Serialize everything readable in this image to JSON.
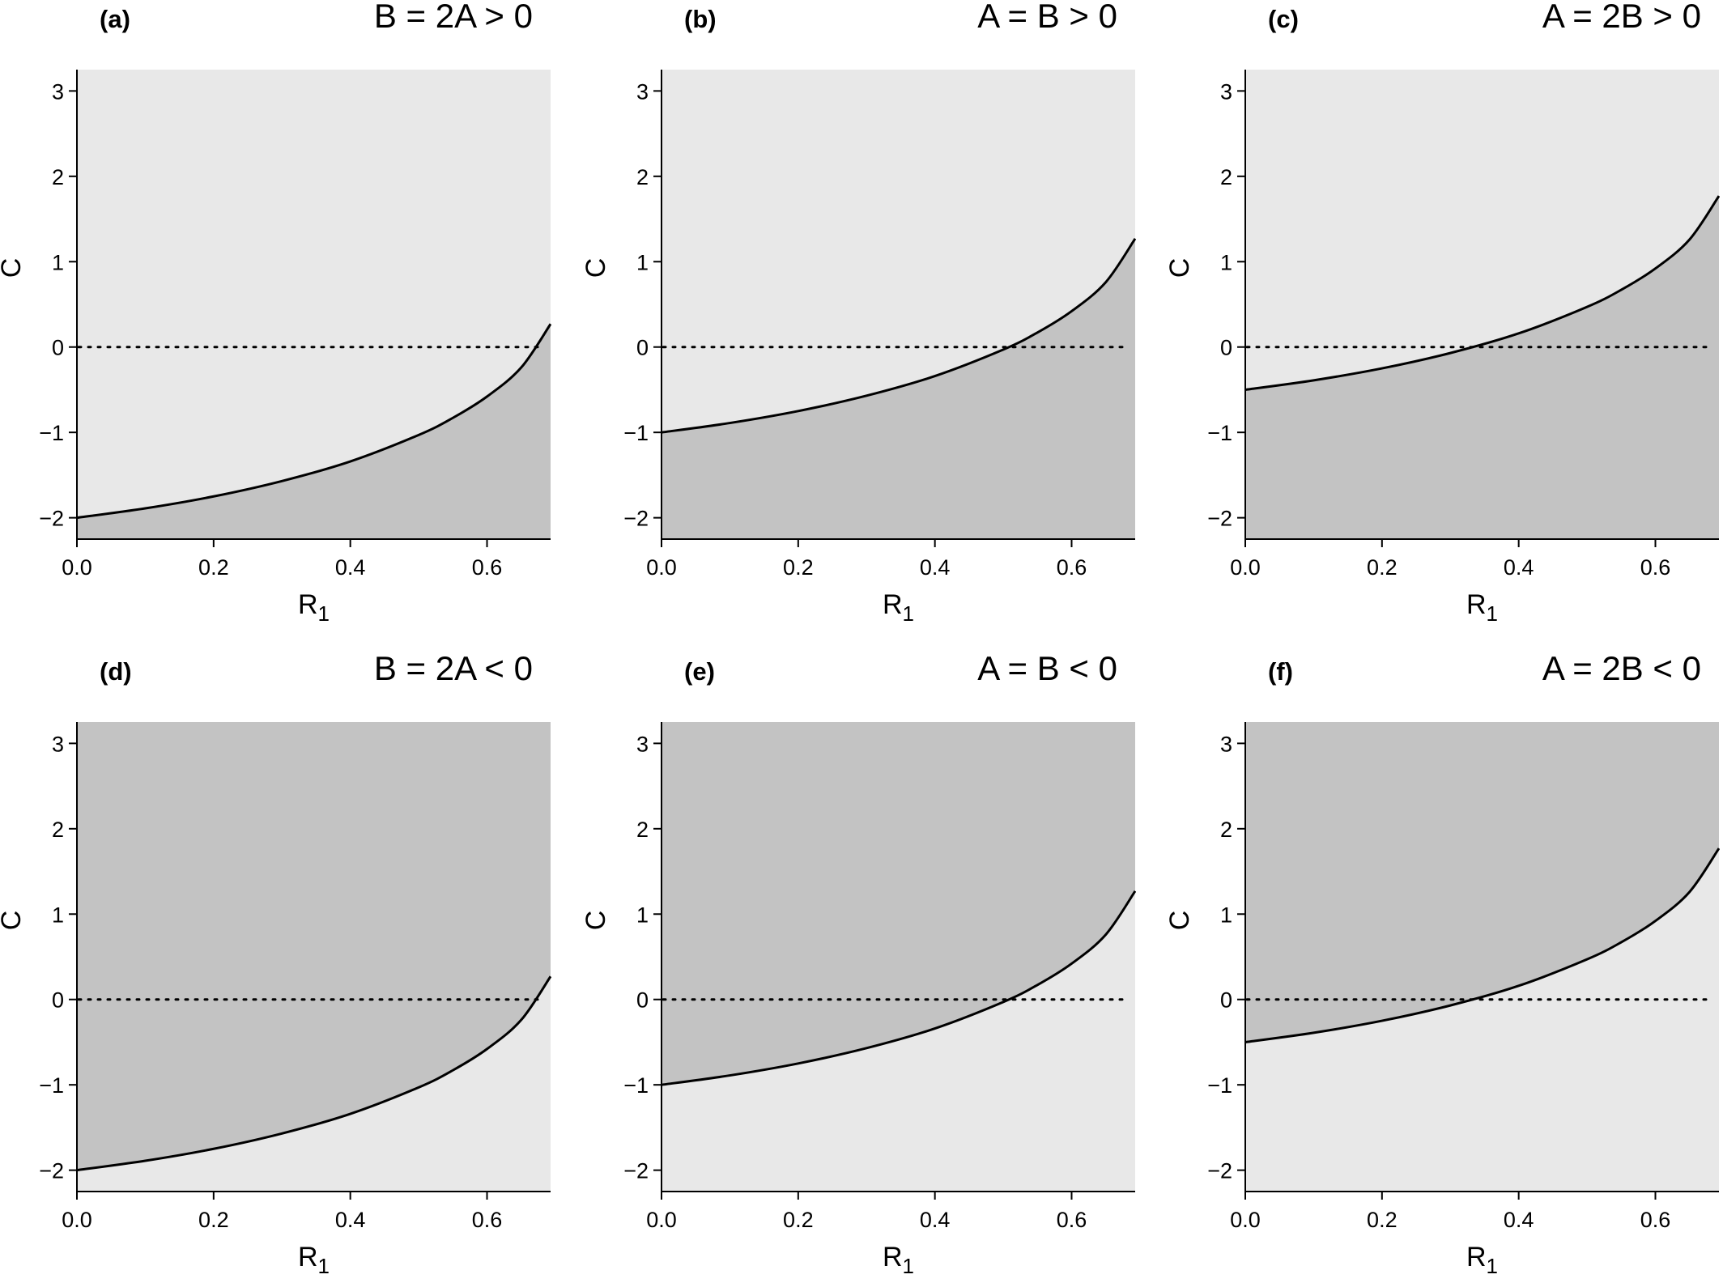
{
  "chart_data": [
    {
      "type": "area",
      "panel_label": "(a)",
      "title": "B = 2A > 0",
      "xlabel": "R",
      "xlabel_subscript": "1",
      "ylabel": "C",
      "xlim": [
        0.0,
        0.693
      ],
      "ylim": [
        -2.25,
        3.25
      ],
      "xticks": [
        0.0,
        0.2,
        0.4,
        0.6
      ],
      "xtick_labels": [
        "0.0",
        "0.2",
        "0.4",
        "0.6"
      ],
      "yticks": [
        -2,
        -1,
        0,
        1,
        2,
        3
      ],
      "ytick_labels": [
        "−2",
        "−1",
        "0",
        "1",
        "2",
        "3"
      ],
      "curve": {
        "x": [
          0.0,
          0.1,
          0.2,
          0.3,
          0.4,
          0.5,
          0.55,
          0.6,
          0.65,
          0.693
        ],
        "y": [
          -2.0,
          -1.89,
          -1.75,
          -1.57,
          -1.34,
          -1.03,
          -0.83,
          -0.58,
          -0.24,
          0.27
        ]
      },
      "fill_above": "#e8e8e8",
      "fill_below": "#c3c3c3",
      "reference_line_y": 0
    },
    {
      "type": "area",
      "panel_label": "(b)",
      "title": "A = B > 0",
      "xlabel": "R",
      "xlabel_subscript": "1",
      "ylabel": "C",
      "xlim": [
        0.0,
        0.693
      ],
      "ylim": [
        -2.25,
        3.25
      ],
      "xticks": [
        0.0,
        0.2,
        0.4,
        0.6
      ],
      "xtick_labels": [
        "0.0",
        "0.2",
        "0.4",
        "0.6"
      ],
      "yticks": [
        -2,
        -1,
        0,
        1,
        2,
        3
      ],
      "ytick_labels": [
        "−2",
        "−1",
        "0",
        "1",
        "2",
        "3"
      ],
      "curve": {
        "x": [
          0.0,
          0.1,
          0.2,
          0.3,
          0.4,
          0.5,
          0.55,
          0.6,
          0.65,
          0.693
        ],
        "y": [
          -1.0,
          -0.89,
          -0.75,
          -0.57,
          -0.34,
          -0.03,
          0.17,
          0.42,
          0.76,
          1.27
        ]
      },
      "fill_above": "#e8e8e8",
      "fill_below": "#c3c3c3",
      "reference_line_y": 0
    },
    {
      "type": "area",
      "panel_label": "(c)",
      "title": "A = 2B > 0",
      "xlabel": "R",
      "xlabel_subscript": "1",
      "ylabel": "C",
      "xlim": [
        0.0,
        0.693
      ],
      "ylim": [
        -2.25,
        3.25
      ],
      "xticks": [
        0.0,
        0.2,
        0.4,
        0.6
      ],
      "xtick_labels": [
        "0.0",
        "0.2",
        "0.4",
        "0.6"
      ],
      "yticks": [
        -2,
        -1,
        0,
        1,
        2,
        3
      ],
      "ytick_labels": [
        "−2",
        "−1",
        "0",
        "1",
        "2",
        "3"
      ],
      "curve": {
        "x": [
          0.0,
          0.1,
          0.2,
          0.3,
          0.4,
          0.5,
          0.55,
          0.6,
          0.65,
          0.693
        ],
        "y": [
          -0.5,
          -0.39,
          -0.25,
          -0.07,
          0.16,
          0.47,
          0.67,
          0.92,
          1.26,
          1.77
        ]
      },
      "fill_above": "#e8e8e8",
      "fill_below": "#c3c3c3",
      "reference_line_y": 0
    },
    {
      "type": "area",
      "panel_label": "(d)",
      "title": "B = 2A < 0",
      "xlabel": "R",
      "xlabel_subscript": "1",
      "ylabel": "C",
      "xlim": [
        0.0,
        0.693
      ],
      "ylim": [
        -2.25,
        3.25
      ],
      "xticks": [
        0.0,
        0.2,
        0.4,
        0.6
      ],
      "xtick_labels": [
        "0.0",
        "0.2",
        "0.4",
        "0.6"
      ],
      "yticks": [
        -2,
        -1,
        0,
        1,
        2,
        3
      ],
      "ytick_labels": [
        "−2",
        "−1",
        "0",
        "1",
        "2",
        "3"
      ],
      "curve": {
        "x": [
          0.0,
          0.1,
          0.2,
          0.3,
          0.4,
          0.5,
          0.55,
          0.6,
          0.65,
          0.693
        ],
        "y": [
          -2.0,
          -1.89,
          -1.75,
          -1.57,
          -1.34,
          -1.03,
          -0.83,
          -0.58,
          -0.24,
          0.27
        ]
      },
      "fill_above": "#c3c3c3",
      "fill_below": "#e8e8e8",
      "reference_line_y": 0
    },
    {
      "type": "area",
      "panel_label": "(e)",
      "title": "A = B < 0",
      "xlabel": "R",
      "xlabel_subscript": "1",
      "ylabel": "C",
      "xlim": [
        0.0,
        0.693
      ],
      "ylim": [
        -2.25,
        3.25
      ],
      "xticks": [
        0.0,
        0.2,
        0.4,
        0.6
      ],
      "xtick_labels": [
        "0.0",
        "0.2",
        "0.4",
        "0.6"
      ],
      "yticks": [
        -2,
        -1,
        0,
        1,
        2,
        3
      ],
      "ytick_labels": [
        "−2",
        "−1",
        "0",
        "1",
        "2",
        "3"
      ],
      "curve": {
        "x": [
          0.0,
          0.1,
          0.2,
          0.3,
          0.4,
          0.5,
          0.55,
          0.6,
          0.65,
          0.693
        ],
        "y": [
          -1.0,
          -0.89,
          -0.75,
          -0.57,
          -0.34,
          -0.03,
          0.17,
          0.42,
          0.76,
          1.27
        ]
      },
      "fill_above": "#c3c3c3",
      "fill_below": "#e8e8e8",
      "reference_line_y": 0
    },
    {
      "type": "area",
      "panel_label": "(f)",
      "title": "A = 2B < 0",
      "xlabel": "R",
      "xlabel_subscript": "1",
      "ylabel": "C",
      "xlim": [
        0.0,
        0.693
      ],
      "ylim": [
        -2.25,
        3.25
      ],
      "xticks": [
        0.0,
        0.2,
        0.4,
        0.6
      ],
      "xtick_labels": [
        "0.0",
        "0.2",
        "0.4",
        "0.6"
      ],
      "yticks": [
        -2,
        -1,
        0,
        1,
        2,
        3
      ],
      "ytick_labels": [
        "−2",
        "−1",
        "0",
        "1",
        "2",
        "3"
      ],
      "curve": {
        "x": [
          0.0,
          0.1,
          0.2,
          0.3,
          0.4,
          0.5,
          0.55,
          0.6,
          0.65,
          0.693
        ],
        "y": [
          -0.5,
          -0.39,
          -0.25,
          -0.07,
          0.16,
          0.47,
          0.67,
          0.92,
          1.26,
          1.77
        ]
      },
      "fill_above": "#c3c3c3",
      "fill_below": "#e8e8e8",
      "reference_line_y": 0
    }
  ]
}
